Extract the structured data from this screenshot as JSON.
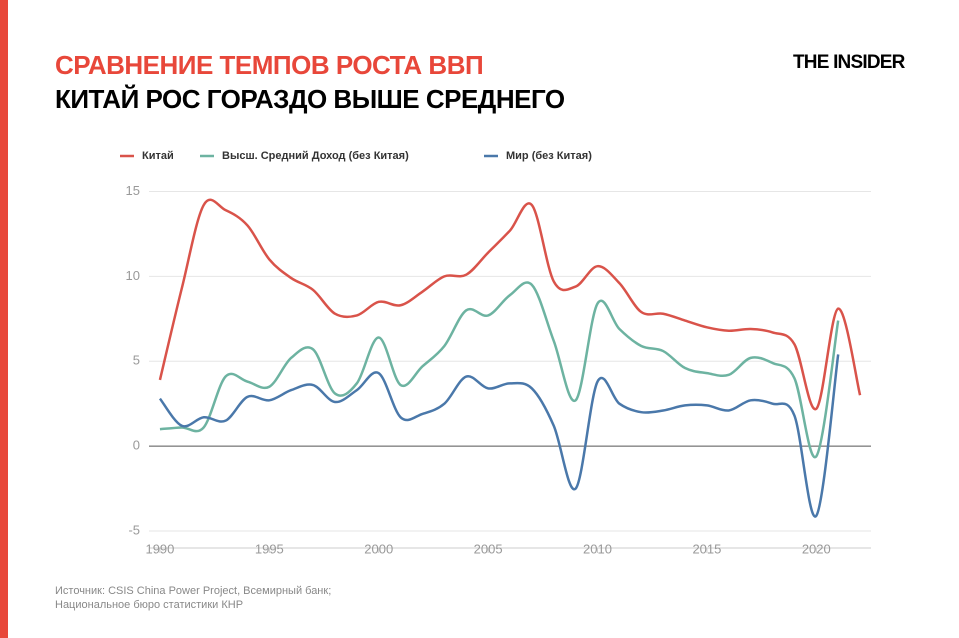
{
  "header": {
    "title": "СРАВНЕНИЕ ТЕМПОВ РОСТА ВВП",
    "subtitle": "КИТАЙ РОС ГОРАЗДО ВЫШЕ СРЕДНЕГО",
    "logo": "THE INSIDER"
  },
  "chart_data": {
    "type": "line",
    "smooth": true,
    "x": [
      1990,
      1991,
      1992,
      1993,
      1994,
      1995,
      1996,
      1997,
      1998,
      1999,
      2000,
      2001,
      2002,
      2003,
      2004,
      2005,
      2006,
      2007,
      2008,
      2009,
      2010,
      2011,
      2012,
      2013,
      2014,
      2015,
      2016,
      2017,
      2018,
      2019,
      2020,
      2021,
      2022
    ],
    "series": [
      {
        "name": "Китай",
        "color": "#d9534a",
        "values": [
          3.9,
          9.3,
          14.2,
          13.9,
          13.0,
          11.0,
          9.9,
          9.2,
          7.8,
          7.7,
          8.5,
          8.3,
          9.1,
          10.0,
          10.1,
          11.4,
          12.7,
          14.2,
          9.7,
          9.4,
          10.6,
          9.6,
          7.9,
          7.8,
          7.4,
          7.0,
          6.8,
          6.9,
          6.7,
          6.0,
          2.2,
          8.1,
          3.0
        ]
      },
      {
        "name": "Высш. Средний Доход (без Китая)",
        "color": "#6db3a1",
        "values": [
          1.0,
          1.1,
          1.1,
          4.1,
          3.8,
          3.5,
          5.2,
          5.7,
          3.1,
          3.7,
          6.4,
          3.6,
          4.7,
          5.9,
          8.0,
          7.7,
          8.9,
          9.5,
          6.2,
          2.7,
          8.4,
          6.9,
          5.9,
          5.6,
          4.6,
          4.3,
          4.2,
          5.2,
          4.9,
          4.0,
          -0.6,
          7.4,
          null
        ]
      },
      {
        "name": "Мир (без Китая)",
        "color": "#4a78aa",
        "values": [
          2.8,
          1.2,
          1.7,
          1.5,
          2.9,
          2.7,
          3.3,
          3.6,
          2.6,
          3.3,
          4.3,
          1.7,
          1.9,
          2.5,
          4.1,
          3.4,
          3.7,
          3.4,
          1.2,
          -2.5,
          3.8,
          2.5,
          2.0,
          2.1,
          2.4,
          2.4,
          2.1,
          2.7,
          2.5,
          1.8,
          -4.1,
          5.4,
          null
        ]
      }
    ],
    "xlim": [
      1989.5,
      2022.5
    ],
    "xticks": [
      1990,
      1995,
      2000,
      2005,
      2010,
      2015,
      2020
    ],
    "ylim": [
      -6,
      15.5
    ],
    "yticks": [
      -5,
      0,
      5,
      10,
      15
    ],
    "grid": true,
    "source": "Источник: CSIS China Power Project, Всемирный банк;\nНациональное бюро статистики КНР"
  }
}
